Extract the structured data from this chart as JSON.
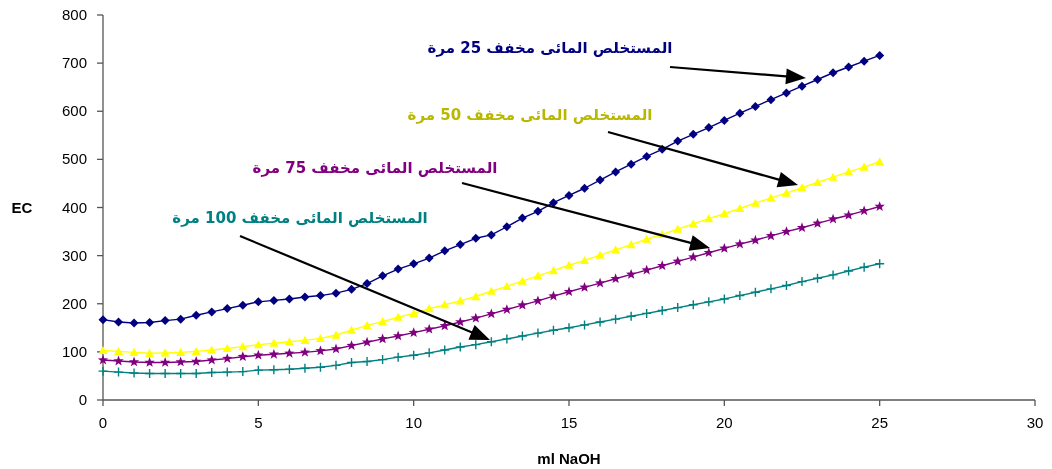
{
  "chart_data": {
    "type": "line",
    "xlabel": "ml NaOH",
    "ylabel": "EC",
    "xlim": [
      0,
      30
    ],
    "xticks": [
      0,
      5,
      10,
      15,
      20,
      25,
      30
    ],
    "ylim": [
      0,
      800
    ],
    "yticks": [
      0,
      100,
      200,
      300,
      400,
      500,
      600,
      700,
      800
    ],
    "grid": false,
    "x": [
      0,
      0.5,
      1,
      1.5,
      2,
      2.5,
      3,
      3.5,
      4,
      4.5,
      5,
      5.5,
      6,
      6.5,
      7,
      7.5,
      8,
      8.5,
      9,
      9.5,
      10,
      10.5,
      11,
      11.5,
      12,
      12.5,
      13,
      13.5,
      14,
      14.5,
      15,
      15.5,
      16,
      16.5,
      17,
      17.5,
      18,
      18.5,
      19,
      19.5,
      20,
      20.5,
      21,
      21.5,
      22,
      22.5,
      23,
      23.5,
      24,
      24.5,
      25
    ],
    "series": [
      {
        "color": "#000080",
        "marker": "diamond",
        "values": [
          167,
          162,
          160,
          161,
          165,
          168,
          176,
          183,
          190,
          197,
          204,
          207,
          210,
          214,
          217,
          222,
          230,
          242,
          258,
          272,
          283,
          295,
          310,
          323,
          336,
          343,
          360,
          378,
          392,
          410,
          425,
          440,
          457,
          474,
          490,
          506,
          521,
          538,
          552,
          566,
          581,
          596,
          610,
          624,
          638,
          652,
          666,
          680,
          692,
          704,
          716
        ]
      },
      {
        "color": "#ffff00",
        "marker": "triangle",
        "values": [
          103,
          101,
          99,
          97,
          98,
          99,
          101,
          104,
          107,
          111,
          115,
          118,
          121,
          124,
          128,
          135,
          145,
          155,
          163,
          172,
          180,
          190,
          198,
          206,
          215,
          226,
          236,
          247,
          258,
          269,
          280,
          290,
          301,
          312,
          323,
          334,
          344,
          355,
          366,
          377,
          387,
          398,
          409,
          420,
          430,
          441,
          452,
          463,
          474,
          484,
          495
        ]
      },
      {
        "color": "#800080",
        "marker": "star",
        "values": [
          83,
          81,
          79,
          78,
          78,
          79,
          80,
          83,
          86,
          90,
          93,
          95,
          97,
          99,
          102,
          106,
          113,
          120,
          127,
          133,
          140,
          147,
          154,
          162,
          170,
          179,
          188,
          197,
          206,
          216,
          225,
          234,
          243,
          252,
          261,
          270,
          279,
          288,
          297,
          306,
          315,
          324,
          332,
          341,
          350,
          358,
          367,
          376,
          384,
          393,
          402
        ]
      },
      {
        "color": "#008080",
        "marker": "cross",
        "values": [
          60,
          58,
          56,
          55,
          55,
          55,
          55,
          57,
          58,
          59,
          62,
          63,
          64,
          66,
          68,
          72,
          78,
          80,
          84,
          89,
          93,
          98,
          104,
          110,
          115,
          121,
          127,
          133,
          139,
          145,
          150,
          156,
          162,
          168,
          174,
          180,
          186,
          192,
          198,
          204,
          210,
          217,
          224,
          231,
          238,
          246,
          253,
          260,
          268,
          276,
          283
        ]
      }
    ],
    "annotations": [
      "المستخلص المائى مخفف 25 مرة",
      "المستخلص المائى مخفف 50 مرة",
      "المستخلص المائى مخفف 75 مرة",
      "المستخلص المائى مخفف 100 مرة"
    ]
  }
}
